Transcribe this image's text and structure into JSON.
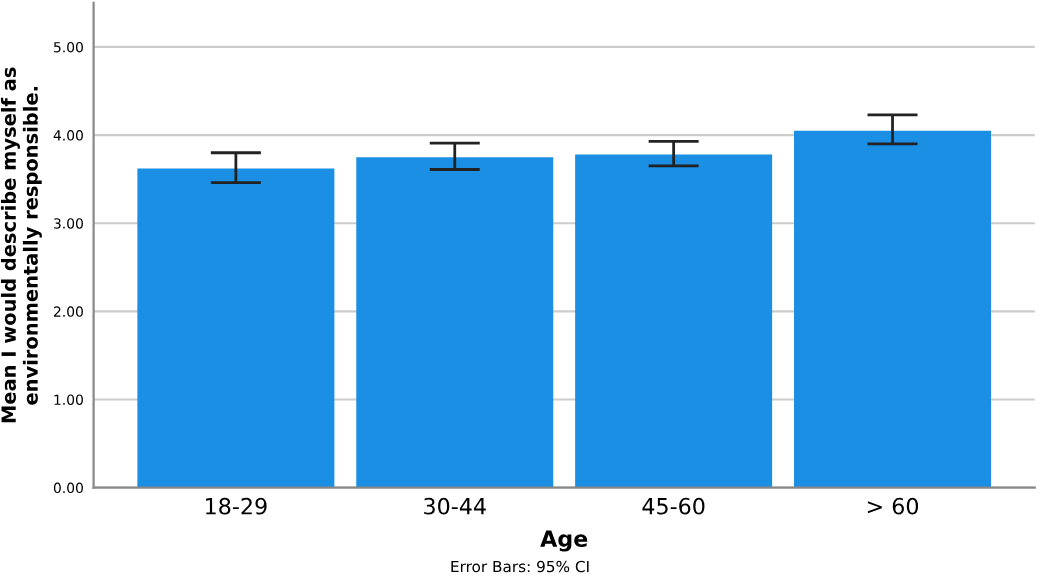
{
  "chart_data": {
    "type": "bar",
    "xlabel": "Age",
    "ylabel": "Mean I would describe myself as environmentally responsible.",
    "categories": [
      "18-29",
      "30-44",
      "45-60",
      "> 60"
    ],
    "values": [
      3.62,
      3.75,
      3.78,
      4.05
    ],
    "errors": [
      [
        3.46,
        3.8
      ],
      [
        3.61,
        3.91
      ],
      [
        3.65,
        3.93
      ],
      [
        3.9,
        4.23
      ]
    ],
    "color": "#1a8fe3",
    "ylim": [
      0,
      5.5
    ],
    "yticks": [
      {
        "value": 0,
        "label": "0.00"
      },
      {
        "value": 1,
        "label": "1.00"
      },
      {
        "value": 2,
        "label": "2.00"
      },
      {
        "value": 3,
        "label": "3.00"
      },
      {
        "value": 4,
        "label": "4.00"
      },
      {
        "value": 5,
        "label": "5.00"
      }
    ],
    "grid": "y",
    "annotations": [
      "Error Bars: 95% CI"
    ]
  }
}
